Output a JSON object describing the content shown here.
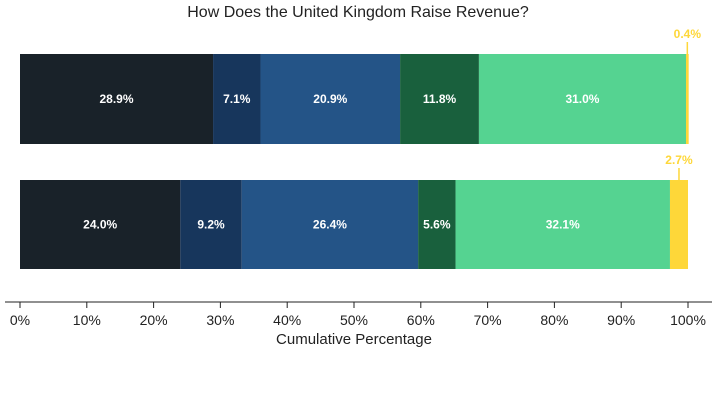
{
  "chart_data": {
    "type": "bar",
    "orientation": "horizontal",
    "stacked": true,
    "title": "How Does the United Kingdom Raise Revenue?",
    "xlabel": "Cumulative Percentage",
    "ylabel": "",
    "xlim": [
      0,
      100
    ],
    "x_ticks": [
      0,
      10,
      20,
      30,
      40,
      50,
      60,
      70,
      80,
      90,
      100
    ],
    "x_tick_labels": [
      "0%",
      "10%",
      "20%",
      "30%",
      "40%",
      "50%",
      "60%",
      "70%",
      "80%",
      "90%",
      "100%"
    ],
    "grid": false,
    "legend": "none",
    "bars": [
      {
        "segments": [
          {
            "value": 28.9,
            "label": "28.9%"
          },
          {
            "value": 7.1,
            "label": "7.1%"
          },
          {
            "value": 20.9,
            "label": "20.9%"
          },
          {
            "value": 11.8,
            "label": "11.8%"
          },
          {
            "value": 31.0,
            "label": "31.0%"
          },
          {
            "value": 0.4,
            "label": "0.4%"
          }
        ]
      },
      {
        "segments": [
          {
            "value": 24.0,
            "label": "24.0%"
          },
          {
            "value": 9.2,
            "label": "9.2%"
          },
          {
            "value": 26.4,
            "label": "26.4%"
          },
          {
            "value": 5.6,
            "label": "5.6%"
          },
          {
            "value": 32.1,
            "label": "32.1%"
          },
          {
            "value": 2.7,
            "label": "2.7%"
          }
        ]
      }
    ],
    "segment_colors": [
      "#192229",
      "#17365c",
      "#245487",
      "#19603d",
      "#55d391",
      "#fed739"
    ],
    "callout_color": "#fed739"
  }
}
